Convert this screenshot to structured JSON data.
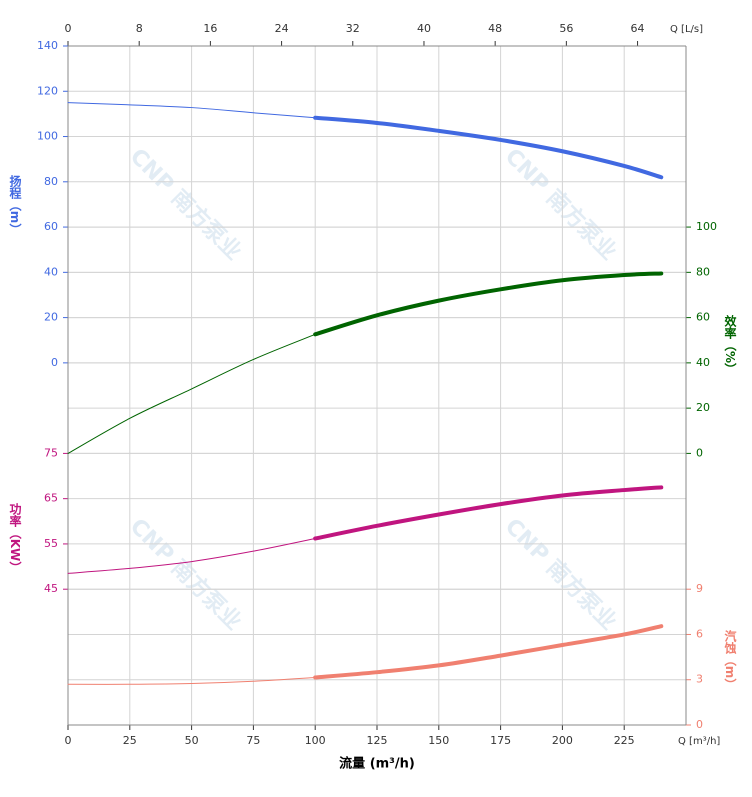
{
  "chart_data": {
    "type": "line",
    "watermark": "CNP 南方泵业",
    "x_title": "流量 (m³/h)",
    "x_unit": "Q [m³/h]",
    "xlim": [
      0,
      250
    ],
    "xticks": [
      0,
      25,
      50,
      75,
      100,
      125,
      150,
      175,
      200,
      225
    ],
    "top_unit": "Q [L/s]",
    "top_xlim": [
      0,
      69.444
    ],
    "top_xticks": [
      0,
      8,
      16,
      24,
      32,
      40,
      48,
      56,
      64
    ],
    "grid": true,
    "axes": [
      {
        "label": "扬程（m）",
        "side": "left",
        "color": "#4169e1",
        "ylim": [
          -160,
          140
        ],
        "yticks": [
          0,
          20,
          40,
          60,
          80,
          100,
          120,
          140
        ]
      },
      {
        "label": "效率（%）",
        "side": "right",
        "color": "#006400",
        "ylim": [
          -120,
          180
        ],
        "yticks": [
          0,
          20,
          40,
          60,
          80,
          100
        ]
      },
      {
        "label": "功率（KW）",
        "side": "left",
        "color": "#c0157f",
        "ylim": [
          15,
          165
        ],
        "yticks": [
          45,
          55,
          65,
          75
        ]
      },
      {
        "label": "汽蚀（m）",
        "side": "right",
        "color": "#f08070",
        "ylim": [
          0,
          45
        ],
        "yticks": [
          0,
          3,
          6,
          9
        ]
      }
    ],
    "series": [
      {
        "axis": 0,
        "color": "#4169e1",
        "segments": [
          {
            "width": 1,
            "x": [
              0,
              25,
              50,
              75,
              100
            ],
            "values": [
              115,
              114,
              112.8,
              110.5,
              108.3
            ]
          },
          {
            "width": 4,
            "x": [
              100,
              125,
              150,
              175,
              200,
              225,
              240
            ],
            "values": [
              108.3,
              106,
              102.5,
              98.5,
              93.5,
              87,
              82
            ]
          }
        ]
      },
      {
        "axis": 1,
        "color": "#006400",
        "segments": [
          {
            "width": 1,
            "x": [
              0,
              25,
              50,
              75,
              100
            ],
            "values": [
              0,
              15.5,
              28.5,
              41.5,
              52.6
            ]
          },
          {
            "width": 4,
            "x": [
              100,
              125,
              150,
              175,
              200,
              225,
              240
            ],
            "values": [
              52.6,
              61,
              67.5,
              72.5,
              76.5,
              78.8,
              79.5
            ]
          }
        ]
      },
      {
        "axis": 2,
        "color": "#c0157f",
        "segments": [
          {
            "width": 1,
            "x": [
              0,
              25,
              50,
              75,
              100
            ],
            "values": [
              48.5,
              49.6,
              51.1,
              53.4,
              56.2
            ]
          },
          {
            "width": 4,
            "x": [
              100,
              125,
              150,
              175,
              200,
              225,
              240
            ],
            "values": [
              56.2,
              59,
              61.5,
              63.8,
              65.7,
              66.9,
              67.5
            ]
          }
        ]
      },
      {
        "axis": 3,
        "color": "#f08070",
        "segments": [
          {
            "width": 1,
            "x": [
              0,
              25,
              50,
              75,
              100
            ],
            "values": [
              2.7,
              2.7,
              2.75,
              2.9,
              3.15
            ]
          },
          {
            "width": 4,
            "x": [
              100,
              125,
              150,
              175,
              200,
              225,
              240
            ],
            "values": [
              3.15,
              3.5,
              3.95,
              4.6,
              5.3,
              6.0,
              6.55
            ]
          }
        ]
      }
    ]
  }
}
